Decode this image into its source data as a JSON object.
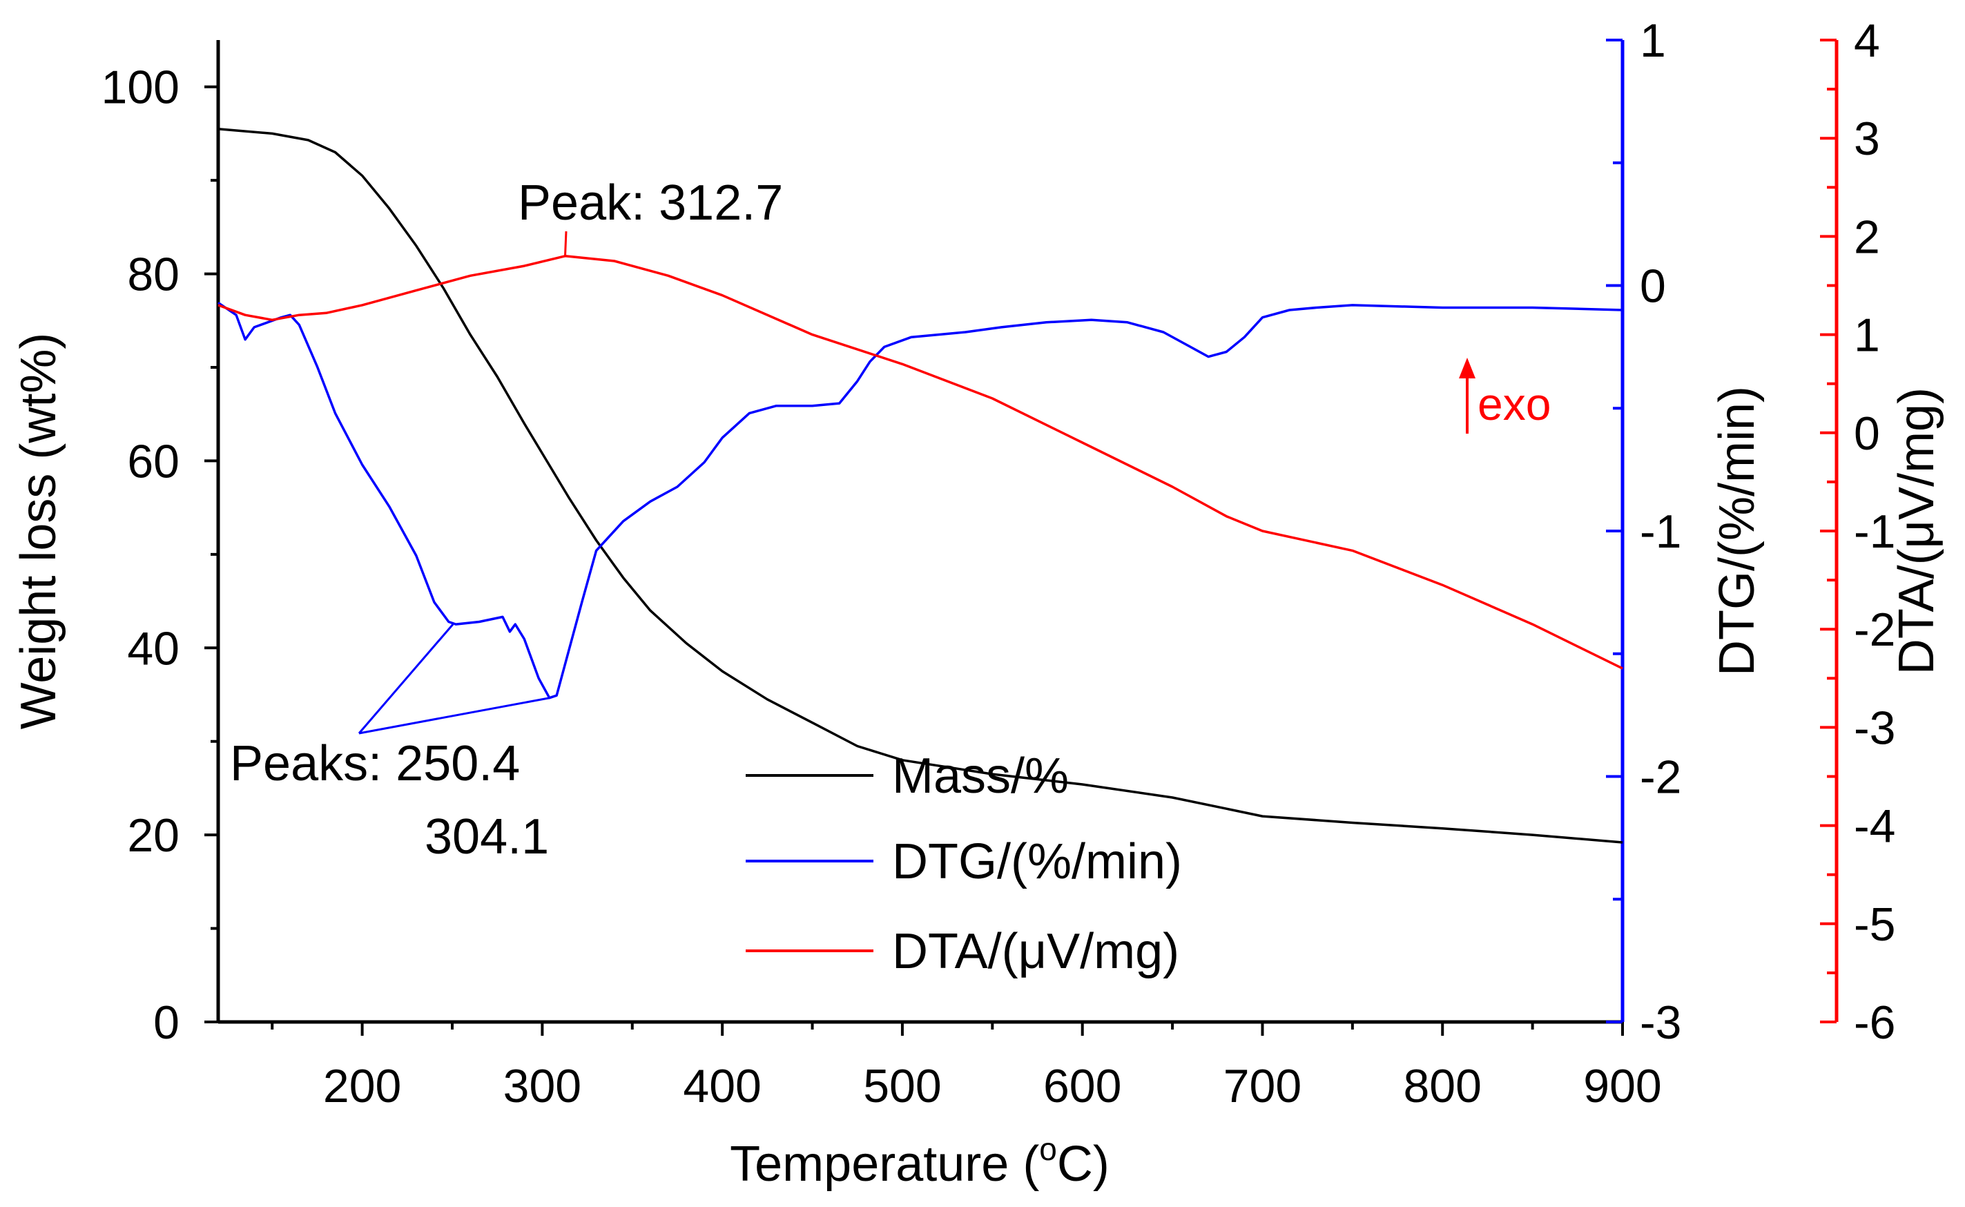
{
  "chart_data": {
    "type": "line",
    "xlabel": "Temperature (°C)",
    "xlabel_parts": {
      "prefix": "Temperature (",
      "sup": "o",
      "suffix": "C)"
    },
    "xlim": [
      120,
      900
    ],
    "x_ticks": [
      200,
      300,
      400,
      500,
      600,
      700,
      800,
      900
    ],
    "axes": {
      "mass": {
        "ylabel": "Weight loss (wt%)",
        "ylim": [
          0,
          105
        ],
        "ticks": [
          0,
          20,
          40,
          60,
          80,
          100
        ],
        "color": "#000000",
        "position": "left"
      },
      "dtg": {
        "ylabel": "DTG/(%/min)",
        "ylim": [
          -3,
          1
        ],
        "ticks": [
          -3,
          -2,
          -1,
          0,
          1
        ],
        "tick_labels": [
          "-3",
          "-2",
          "-1",
          "0",
          "1"
        ],
        "color": "#0000ff",
        "position": "right"
      },
      "dta": {
        "ylabel": "DTA/(μV/mg)",
        "ylim": [
          -6,
          4
        ],
        "ticks": [
          -6,
          -5,
          -4,
          -3,
          -2,
          -1,
          0,
          1,
          2,
          3,
          4
        ],
        "tick_labels": [
          "-6",
          "-5",
          "-4",
          "-3",
          "-2",
          "-1",
          "0",
          "1",
          "2",
          "3",
          "4"
        ],
        "color": "#ff0000",
        "position": "far-right"
      }
    },
    "series": [
      {
        "name": "Mass/%",
        "axis": "mass",
        "color": "#000000",
        "points": [
          [
            120,
            95.5
          ],
          [
            150,
            95
          ],
          [
            170,
            94.3
          ],
          [
            185,
            93
          ],
          [
            200,
            90.5
          ],
          [
            215,
            87
          ],
          [
            230,
            83
          ],
          [
            245,
            78.5
          ],
          [
            260,
            73.5
          ],
          [
            275,
            69
          ],
          [
            290,
            64
          ],
          [
            300,
            60.8
          ],
          [
            315,
            56
          ],
          [
            330,
            51.5
          ],
          [
            345,
            47.5
          ],
          [
            360,
            44
          ],
          [
            380,
            40.5
          ],
          [
            400,
            37.5
          ],
          [
            425,
            34.5
          ],
          [
            450,
            32
          ],
          [
            475,
            29.5
          ],
          [
            500,
            28
          ],
          [
            550,
            26.5
          ],
          [
            600,
            25.4
          ],
          [
            650,
            24
          ],
          [
            680,
            22.8
          ],
          [
            700,
            22
          ],
          [
            750,
            21.3
          ],
          [
            800,
            20.7
          ],
          [
            850,
            20
          ],
          [
            900,
            19.2
          ]
        ]
      },
      {
        "name": "DTG/(%/min)",
        "axis": "dtg",
        "color": "#0000ff",
        "points": [
          [
            120,
            -0.07
          ],
          [
            130,
            -0.12
          ],
          [
            135,
            -0.22
          ],
          [
            140,
            -0.17
          ],
          [
            155,
            -0.13
          ],
          [
            160,
            -0.12
          ],
          [
            165,
            -0.16
          ],
          [
            175,
            -0.33
          ],
          [
            185,
            -0.52
          ],
          [
            200,
            -0.73
          ],
          [
            215,
            -0.9
          ],
          [
            230,
            -1.1
          ],
          [
            240,
            -1.29
          ],
          [
            248,
            -1.37
          ],
          [
            252,
            -1.38
          ],
          [
            265,
            -1.37
          ],
          [
            278,
            -1.35
          ],
          [
            282,
            -1.41
          ],
          [
            285,
            -1.38
          ],
          [
            290,
            -1.44
          ],
          [
            298,
            -1.6
          ],
          [
            304,
            -1.68
          ],
          [
            308,
            -1.67
          ],
          [
            315,
            -1.48
          ],
          [
            322,
            -1.29
          ],
          [
            330,
            -1.08
          ],
          [
            345,
            -0.96
          ],
          [
            360,
            -0.88
          ],
          [
            375,
            -0.82
          ],
          [
            390,
            -0.72
          ],
          [
            400,
            -0.62
          ],
          [
            415,
            -0.52
          ],
          [
            430,
            -0.49
          ],
          [
            450,
            -0.49
          ],
          [
            465,
            -0.48
          ],
          [
            475,
            -0.39
          ],
          [
            482,
            -0.31
          ],
          [
            490,
            -0.25
          ],
          [
            505,
            -0.21
          ],
          [
            520,
            -0.2
          ],
          [
            535,
            -0.19
          ],
          [
            555,
            -0.17
          ],
          [
            580,
            -0.15
          ],
          [
            605,
            -0.14
          ],
          [
            625,
            -0.15
          ],
          [
            645,
            -0.19
          ],
          [
            660,
            -0.25
          ],
          [
            670,
            -0.29
          ],
          [
            680,
            -0.27
          ],
          [
            690,
            -0.21
          ],
          [
            700,
            -0.13
          ],
          [
            715,
            -0.1
          ],
          [
            730,
            -0.09
          ],
          [
            750,
            -0.08
          ],
          [
            800,
            -0.09
          ],
          [
            850,
            -0.09
          ],
          [
            900,
            -0.1
          ]
        ]
      },
      {
        "name": "DTA/(μV/mg)",
        "axis": "dta",
        "color": "#ff0000",
        "points": [
          [
            120,
            1.3
          ],
          [
            135,
            1.2
          ],
          [
            150,
            1.15
          ],
          [
            165,
            1.2
          ],
          [
            180,
            1.22
          ],
          [
            200,
            1.3
          ],
          [
            230,
            1.45
          ],
          [
            260,
            1.6
          ],
          [
            290,
            1.7
          ],
          [
            312.7,
            1.8
          ],
          [
            340,
            1.75
          ],
          [
            370,
            1.6
          ],
          [
            400,
            1.4
          ],
          [
            450,
            1.0
          ],
          [
            500,
            0.7
          ],
          [
            550,
            0.35
          ],
          [
            600,
            -0.1
          ],
          [
            650,
            -0.55
          ],
          [
            680,
            -0.85
          ],
          [
            700,
            -1.0
          ],
          [
            750,
            -1.2
          ],
          [
            800,
            -1.55
          ],
          [
            850,
            -1.95
          ],
          [
            900,
            -2.4
          ]
        ]
      }
    ],
    "legend": {
      "position": "bottom-center",
      "entries": [
        "Mass/%",
        "DTG/(%/min)",
        "DTA/(μV/mg)"
      ]
    },
    "annotations": [
      {
        "id": "dta-peak",
        "text": "Peak: 312.7",
        "color": "#ff0000",
        "x": 312.7,
        "y": 1.8,
        "axis": "dta"
      },
      {
        "id": "dtg-peaks",
        "line1": "Peaks: 250.4",
        "line2": "304.1",
        "color": "#0000ff",
        "targets": [
          [
            250.4,
            -1.38
          ],
          [
            304.1,
            -1.68
          ]
        ],
        "axis": "dtg"
      },
      {
        "id": "exo",
        "text": "exo",
        "color": "#ff0000"
      }
    ]
  }
}
